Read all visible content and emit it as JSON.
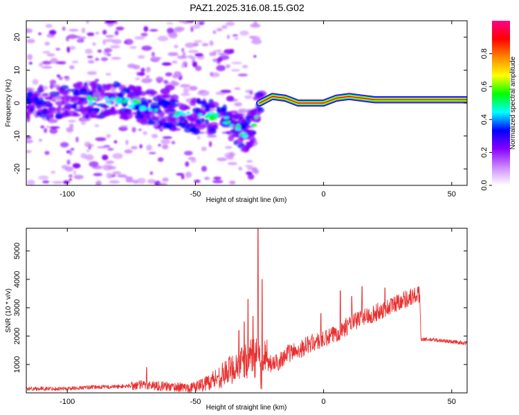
{
  "title": "PAZ1.2025.316.08.15.G02",
  "chart_data": [
    {
      "type": "heatmap",
      "title": "PAZ1.2025.316.08.15.G02",
      "xlabel": "Height of straight line (km)",
      "ylabel": "Frequency (Hz)",
      "xlim": [
        -116,
        56
      ],
      "ylim": [
        -25,
        25
      ],
      "xticks": [
        -100,
        -50,
        0,
        50
      ],
      "yticks": [
        -20,
        -10,
        0,
        10,
        20
      ],
      "ridge": [
        {
          "x": -115,
          "y": 0
        },
        {
          "x": -100,
          "y": 0.5
        },
        {
          "x": -90,
          "y": 1
        },
        {
          "x": -80,
          "y": 1
        },
        {
          "x": -70,
          "y": -1
        },
        {
          "x": -60,
          "y": -3
        },
        {
          "x": -50,
          "y": -4
        },
        {
          "x": -40,
          "y": -4
        },
        {
          "x": -35,
          "y": -7
        },
        {
          "x": -30,
          "y": -10
        },
        {
          "x": -27,
          "y": -6
        },
        {
          "x": -25,
          "y": 0
        },
        {
          "x": -20,
          "y": 2
        },
        {
          "x": -15,
          "y": 1.5
        },
        {
          "x": -10,
          "y": 0
        },
        {
          "x": -5,
          "y": 0
        },
        {
          "x": 0,
          "y": 0
        },
        {
          "x": 5,
          "y": 1.5
        },
        {
          "x": 10,
          "y": 2
        },
        {
          "x": 15,
          "y": 1.5
        },
        {
          "x": 20,
          "y": 1
        },
        {
          "x": 30,
          "y": 1
        },
        {
          "x": 40,
          "y": 1
        },
        {
          "x": 56,
          "y": 1
        }
      ],
      "colorbar": {
        "label": "Normalized spectral amplitude",
        "range": [
          0,
          1
        ],
        "ticks": [
          "0.0",
          "0.2",
          "0.4",
          "0.6",
          "0.8"
        ],
        "ramp": [
          "#ffffff",
          "#cc88ff",
          "#8800ff",
          "#0000ff",
          "#00ffff",
          "#00ff00",
          "#ffff00",
          "#ff8800",
          "#ff0000",
          "#ff0088"
        ]
      }
    },
    {
      "type": "line",
      "xlabel": "Height of straight line (km)",
      "ylabel": "SNR (10 * v/v)",
      "xlim": [
        -116,
        56
      ],
      "ylim": [
        0,
        5800
      ],
      "xticks": [
        -100,
        -50,
        0,
        50
      ],
      "yticks": [
        1000,
        2000,
        3000,
        4000,
        5000
      ],
      "color": "#e83030",
      "trend": [
        {
          "x": -116,
          "y": 150
        },
        {
          "x": -100,
          "y": 150
        },
        {
          "x": -90,
          "y": 200
        },
        {
          "x": -80,
          "y": 220
        },
        {
          "x": -70,
          "y": 280
        },
        {
          "x": -60,
          "y": 220
        },
        {
          "x": -52,
          "y": 180
        },
        {
          "x": -47,
          "y": 300
        },
        {
          "x": -40,
          "y": 600
        },
        {
          "x": -35,
          "y": 900
        },
        {
          "x": -30,
          "y": 1100
        },
        {
          "x": -28,
          "y": 1500
        },
        {
          "x": -25,
          "y": 900
        },
        {
          "x": -22,
          "y": 1000
        },
        {
          "x": -18,
          "y": 1050
        },
        {
          "x": -15,
          "y": 1350
        },
        {
          "x": -10,
          "y": 1500
        },
        {
          "x": -5,
          "y": 1750
        },
        {
          "x": 0,
          "y": 1850
        },
        {
          "x": 5,
          "y": 2100
        },
        {
          "x": 10,
          "y": 2400
        },
        {
          "x": 15,
          "y": 2650
        },
        {
          "x": 20,
          "y": 2800
        },
        {
          "x": 25,
          "y": 3000
        },
        {
          "x": 30,
          "y": 3250
        },
        {
          "x": 35,
          "y": 3400
        },
        {
          "x": 37.5,
          "y": 3450
        },
        {
          "x": 38,
          "y": 1900
        },
        {
          "x": 45,
          "y": 1850
        },
        {
          "x": 50,
          "y": 1800
        },
        {
          "x": 56,
          "y": 1750
        }
      ],
      "spikes": [
        {
          "x": -25.6,
          "y": 5800
        },
        {
          "x": -24,
          "y": 4000
        },
        {
          "x": -29.5,
          "y": 3300
        },
        {
          "x": -27.5,
          "y": 2700
        },
        {
          "x": -31,
          "y": 2500
        },
        {
          "x": -33,
          "y": 2200
        },
        {
          "x": -69,
          "y": 900
        },
        {
          "x": 15,
          "y": 3750
        },
        {
          "x": 11,
          "y": 3400
        },
        {
          "x": 6.5,
          "y": 3600
        },
        {
          "x": -1,
          "y": 2800
        },
        {
          "x": 24,
          "y": 3700
        }
      ]
    }
  ]
}
